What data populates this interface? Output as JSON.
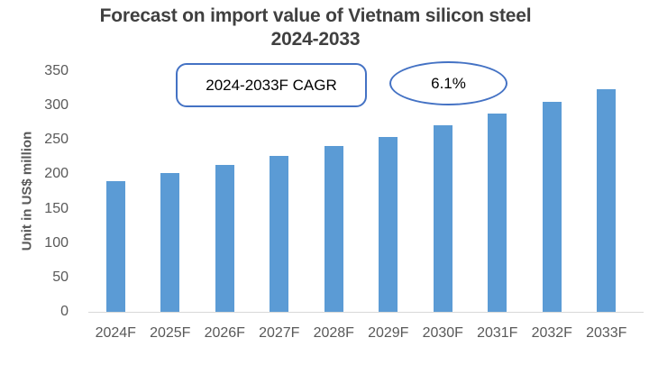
{
  "title": {
    "line1": "Forecast on import value of Vietnam silicon steel",
    "line2": "2024-2033"
  },
  "annotations": {
    "cagr_box_label": "2024-2033F CAGR",
    "cagr_value": "6.1%"
  },
  "y_axis": {
    "label": "Unit in US$ million",
    "ticks": [
      0,
      50,
      100,
      150,
      200,
      250,
      300,
      350
    ]
  },
  "chart_data": {
    "type": "bar",
    "title": "Forecast on import value of Vietnam silicon steel 2024-2033",
    "categories": [
      "2024F",
      "2025F",
      "2026F",
      "2027F",
      "2028F",
      "2029F",
      "2030F",
      "2031F",
      "2032F",
      "2033F"
    ],
    "values": [
      190,
      202,
      214,
      227,
      241,
      255,
      271,
      288,
      305,
      324
    ],
    "xlabel": "",
    "ylabel": "Unit in US$ million",
    "ylim": [
      0,
      350
    ],
    "ytick_step": 50,
    "grid": false,
    "legend": false,
    "bar_color": "#5B9BD5",
    "annotations": [
      {
        "shape": "rounded-rect",
        "text": "2024-2033F CAGR"
      },
      {
        "shape": "ellipse",
        "text": "6.1%"
      }
    ]
  },
  "colors": {
    "bar": "#5B9BD5",
    "shape_border": "#4472C4",
    "title_text": "#404040",
    "axis_text": "#595959",
    "axis_line": "#D9D9D9",
    "background": "#FFFFFF"
  }
}
